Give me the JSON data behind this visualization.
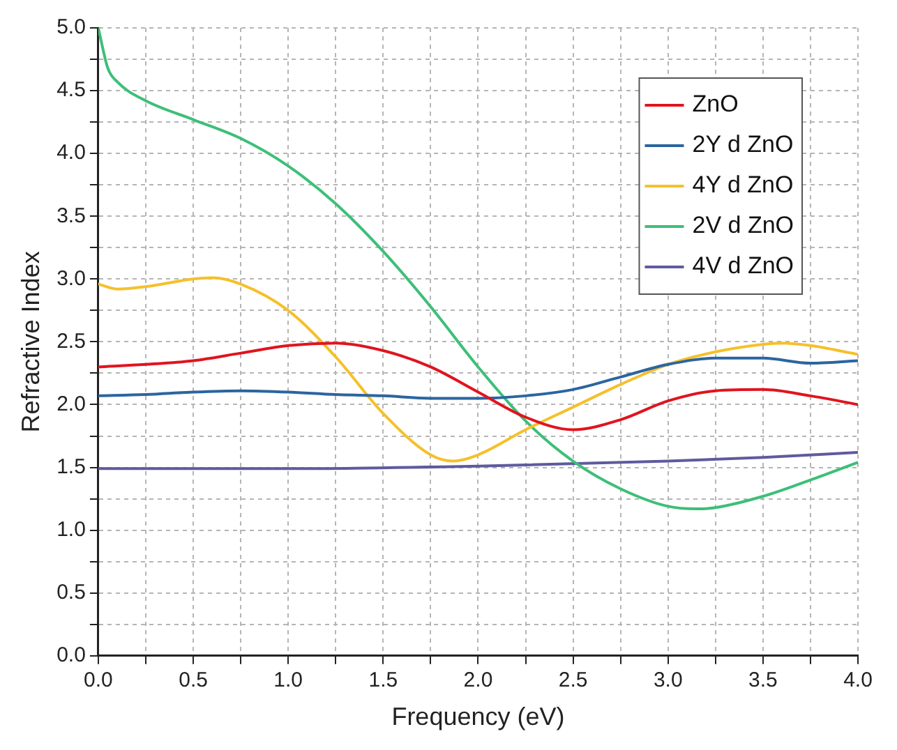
{
  "chart_data": {
    "type": "line",
    "xlabel": "Frequency (eV)",
    "ylabel": "Refractive Index",
    "xlim": [
      0,
      4
    ],
    "ylim": [
      0,
      5
    ],
    "xticks": [
      {
        "value": 0,
        "label": "0.0"
      },
      {
        "value": 0.25,
        "label": null
      },
      {
        "value": 0.5,
        "label": "0.5"
      },
      {
        "value": 0.75,
        "label": null
      },
      {
        "value": 1,
        "label": "1.0"
      },
      {
        "value": 1.25,
        "label": null
      },
      {
        "value": 1.5,
        "label": "1.5"
      },
      {
        "value": 1.75,
        "label": null
      },
      {
        "value": 2,
        "label": "2.0"
      },
      {
        "value": 2.25,
        "label": null
      },
      {
        "value": 2.5,
        "label": "2.5"
      },
      {
        "value": 2.75,
        "label": null
      },
      {
        "value": 3,
        "label": "3.0"
      },
      {
        "value": 3.25,
        "label": null
      },
      {
        "value": 3.5,
        "label": "3.5"
      },
      {
        "value": 3.75,
        "label": null
      },
      {
        "value": 4,
        "label": "4.0"
      }
    ],
    "yticks": [
      {
        "value": 0,
        "label": "0.0"
      },
      {
        "value": 0.25,
        "label": null
      },
      {
        "value": 0.5,
        "label": "0.5"
      },
      {
        "value": 0.75,
        "label": null
      },
      {
        "value": 1,
        "label": "1.0"
      },
      {
        "value": 1.25,
        "label": null
      },
      {
        "value": 1.5,
        "label": "1.5"
      },
      {
        "value": 1.75,
        "label": null
      },
      {
        "value": 2,
        "label": "2.0"
      },
      {
        "value": 2.25,
        "label": null
      },
      {
        "value": 2.5,
        "label": "2.5"
      },
      {
        "value": 2.75,
        "label": null
      },
      {
        "value": 3,
        "label": "3.0"
      },
      {
        "value": 3.25,
        "label": null
      },
      {
        "value": 3.5,
        "label": "3.5"
      },
      {
        "value": 3.75,
        "label": null
      },
      {
        "value": 4,
        "label": "4.0"
      },
      {
        "value": 4.25,
        "label": null
      },
      {
        "value": 4.5,
        "label": "4.5"
      },
      {
        "value": 4.75,
        "label": null
      },
      {
        "value": 5,
        "label": "5.0"
      }
    ],
    "grid": true,
    "legend": "top right",
    "marker": "none",
    "line_style": "solid",
    "series": [
      {
        "name": "ZnO",
        "color": "#e0141e",
        "x": [
          0,
          0.25,
          0.5,
          0.75,
          1,
          1.25,
          1.5,
          1.75,
          2,
          2.25,
          2.5,
          2.75,
          3,
          3.25,
          3.5,
          3.75,
          4
        ],
        "values": [
          2.3,
          2.32,
          2.35,
          2.41,
          2.47,
          2.49,
          2.43,
          2.3,
          2.1,
          1.9,
          1.8,
          1.88,
          2.03,
          2.11,
          2.12,
          2.07,
          2
        ]
      },
      {
        "name": "2Y d ZnO",
        "color": "#2b65a0",
        "x": [
          0,
          0.25,
          0.5,
          0.75,
          1,
          1.25,
          1.5,
          1.75,
          2,
          2.25,
          2.5,
          2.75,
          3,
          3.25,
          3.5,
          3.75,
          4
        ],
        "values": [
          2.07,
          2.08,
          2.1,
          2.11,
          2.1,
          2.08,
          2.07,
          2.05,
          2.05,
          2.07,
          2.12,
          2.22,
          2.32,
          2.37,
          2.37,
          2.33,
          2.35
        ]
      },
      {
        "name": "4Y d ZnO",
        "color": "#f5c02a",
        "x": [
          0,
          0.1,
          0.25,
          0.5,
          0.6,
          0.75,
          1,
          1.25,
          1.5,
          1.75,
          1.87,
          2,
          2.25,
          2.5,
          2.75,
          3,
          3.25,
          3.5,
          3.6,
          3.75,
          4
        ],
        "values": [
          2.96,
          2.92,
          2.94,
          3,
          3.01,
          2.96,
          2.75,
          2.38,
          1.93,
          1.6,
          1.55,
          1.6,
          1.8,
          1.98,
          2.16,
          2.32,
          2.42,
          2.48,
          2.49,
          2.47,
          2.4
        ]
      },
      {
        "name": "2V d ZnO",
        "color": "#3dbf78",
        "x": [
          0,
          0.05,
          0.1,
          0.25,
          0.5,
          0.75,
          1,
          1.25,
          1.5,
          1.75,
          2,
          2.25,
          2.5,
          2.75,
          3,
          3.15,
          3.25,
          3.5,
          3.75,
          4
        ],
        "values": [
          5,
          4.68,
          4.57,
          4.42,
          4.27,
          4.12,
          3.9,
          3.6,
          3.22,
          2.78,
          2.3,
          1.87,
          1.55,
          1.33,
          1.19,
          1.17,
          1.18,
          1.27,
          1.4,
          1.54
        ]
      },
      {
        "name": "4V d ZnO",
        "color": "#5f5a9e",
        "x": [
          0,
          1,
          2,
          3,
          3.5,
          4
        ],
        "values": [
          1.49,
          1.49,
          1.51,
          1.55,
          1.58,
          1.62
        ]
      }
    ]
  }
}
